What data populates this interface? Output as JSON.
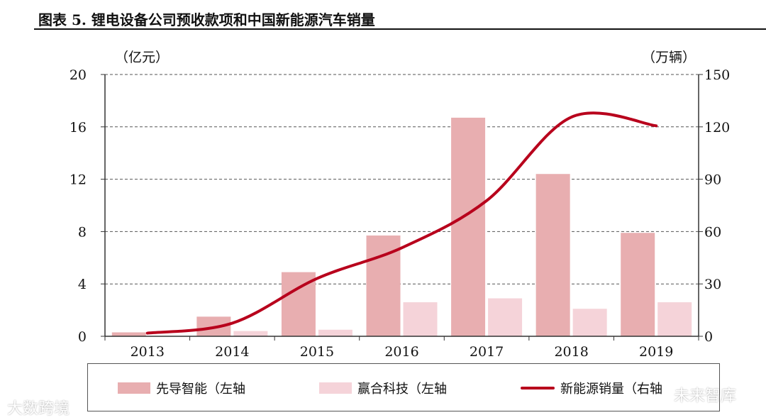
{
  "header": {
    "title": "图表 5. 锂电设备公司预收款项和中国新能源汽车销量"
  },
  "chart_data": {
    "type": "bar",
    "categories": [
      "2013",
      "2014",
      "2015",
      "2016",
      "2017",
      "2018",
      "2019"
    ],
    "left_axis": {
      "unit": "（亿元）",
      "ylim": [
        0,
        20
      ],
      "ticks": [
        0,
        4,
        8,
        12,
        16,
        20
      ]
    },
    "right_axis": {
      "unit": "（万辆）",
      "ylim": [
        0,
        150
      ],
      "ticks": [
        0,
        30,
        60,
        90,
        120,
        150
      ]
    },
    "grid": "horizontal dashed",
    "series": [
      {
        "name": "先导智能（左轴",
        "type": "bar",
        "axis": "left",
        "color": "#e8aeb0",
        "values": [
          0.3,
          1.5,
          4.9,
          7.7,
          16.7,
          12.4,
          7.9
        ]
      },
      {
        "name": "赢合科技（左轴",
        "type": "bar",
        "axis": "left",
        "color": "#f5d3d9",
        "values": [
          0.0,
          0.4,
          0.5,
          2.6,
          2.9,
          2.1,
          2.6
        ]
      },
      {
        "name": "新能源销量（右轴",
        "type": "line",
        "axis": "right",
        "color": "#b8001c",
        "values": [
          1.8,
          7.5,
          33.1,
          50.7,
          77.7,
          125.6,
          120.6
        ]
      }
    ],
    "legend_position": "bottom"
  },
  "watermarks": [
    "大数跨境",
    "未来智库"
  ]
}
